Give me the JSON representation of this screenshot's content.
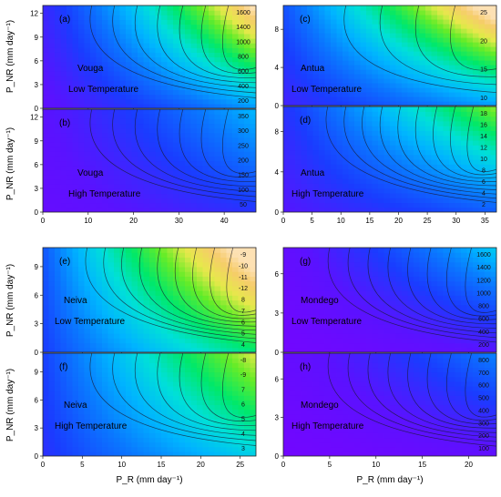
{
  "panels": [
    {
      "id": "a",
      "letter": "(a)",
      "river": "Vouga",
      "condition": "Low Temperature",
      "xlim": [
        0,
        47
      ],
      "ylim": [
        0,
        13
      ],
      "xticks": [
        "0",
        "10",
        "20",
        "30",
        "40"
      ],
      "yticks": [
        "0",
        "3",
        "6",
        "9",
        "12"
      ]
    },
    {
      "id": "b",
      "letter": "(b)",
      "river": "Vouga",
      "condition": "High Temperature",
      "xlim": [
        0,
        47
      ],
      "ylim": [
        0,
        13
      ],
      "xticks": [
        "0",
        "10",
        "20",
        "30",
        "40"
      ],
      "yticks": [
        "0",
        "3",
        "6",
        "9",
        "12"
      ]
    },
    {
      "id": "c",
      "letter": "(c)",
      "river": "Antua",
      "condition": "Low Temperature",
      "xlim": [
        0,
        37
      ],
      "ylim": [
        0,
        10.5
      ],
      "xticks": [
        "0",
        "5",
        "10",
        "15",
        "20",
        "25",
        "30",
        "35"
      ],
      "yticks": [
        "0",
        "4",
        "8"
      ]
    },
    {
      "id": "d",
      "letter": "(d)",
      "river": "Antua",
      "condition": "High Temperature",
      "xlim": [
        0,
        37
      ],
      "ylim": [
        0,
        10.5
      ],
      "xticks": [
        "0",
        "5",
        "10",
        "15",
        "20",
        "25",
        "30",
        "35"
      ],
      "yticks": [
        "0",
        "4",
        "8"
      ]
    },
    {
      "id": "e",
      "letter": "(e)",
      "river": "Neiva",
      "condition": "Low Temperature",
      "xlim": [
        0,
        27
      ],
      "ylim": [
        0,
        11
      ],
      "xticks": [
        "0",
        "5",
        "10",
        "15",
        "20",
        "25"
      ],
      "yticks": [
        "0",
        "3",
        "6",
        "9"
      ]
    },
    {
      "id": "f",
      "letter": "(f)",
      "river": "Neiva",
      "condition": "High Temperature",
      "xlim": [
        0,
        27
      ],
      "ylim": [
        0,
        11
      ],
      "xticks": [
        "0",
        "5",
        "10",
        "15",
        "20",
        "25"
      ],
      "yticks": [
        "0",
        "3",
        "6",
        "9"
      ]
    },
    {
      "id": "g",
      "letter": "(g)",
      "river": "Mondego",
      "condition": "Low Temperature",
      "xlim": [
        0,
        23
      ],
      "ylim": [
        0,
        8
      ],
      "xticks": [
        "0",
        "5",
        "10",
        "15",
        "20"
      ],
      "yticks": [
        "0",
        "3",
        "6"
      ]
    },
    {
      "id": "h",
      "letter": "(h)",
      "river": "Mondego",
      "condition": "High Temperature",
      "xlim": [
        0,
        23
      ],
      "ylim": [
        0,
        8
      ],
      "xticks": [
        "0",
        "5",
        "10",
        "15",
        "20"
      ],
      "yticks": [
        "0",
        "3",
        "6"
      ]
    }
  ],
  "axis_labels": {
    "y": "P_NR (mm day⁻¹)",
    "x": "P_R (mm day⁻¹)"
  },
  "chart_data": [
    {
      "type": "heatmap",
      "panel": "a",
      "river": "Vouga",
      "condition": "Low Temperature",
      "xlabel": "P_R (mm day⁻¹)",
      "ylabel": "P_NR (mm day⁻¹)",
      "xlim": [
        0,
        47
      ],
      "ylim": [
        0,
        13
      ],
      "contour_labels": [
        "1600",
        "1400",
        "1000",
        "800",
        "600",
        "400",
        "200"
      ]
    },
    {
      "type": "heatmap",
      "panel": "b",
      "river": "Vouga",
      "condition": "High Temperature",
      "xlabel": "P_R (mm day⁻¹)",
      "ylabel": "P_NR (mm day⁻¹)",
      "xlim": [
        0,
        47
      ],
      "ylim": [
        0,
        13
      ],
      "contour_labels": [
        "350",
        "300",
        "250",
        "200",
        "150",
        "100",
        "50"
      ]
    },
    {
      "type": "heatmap",
      "panel": "c",
      "river": "Antua",
      "condition": "Low Temperature",
      "xlim": [
        0,
        37
      ],
      "ylim": [
        0,
        10.5
      ],
      "contour_labels": [
        "25",
        "20",
        "15",
        "10"
      ]
    },
    {
      "type": "heatmap",
      "panel": "d",
      "river": "Antua",
      "condition": "High Temperature",
      "xlim": [
        0,
        37
      ],
      "ylim": [
        0,
        10.5
      ],
      "contour_labels": [
        "18",
        "16",
        "14",
        "12",
        "10",
        "8",
        "6",
        "4",
        "2"
      ]
    },
    {
      "type": "heatmap",
      "panel": "e",
      "river": "Neiva",
      "condition": "Low Temperature",
      "xlim": [
        0,
        27
      ],
      "ylim": [
        0,
        11
      ],
      "contour_labels": [
        "-9",
        "-10",
        "-11",
        "-12",
        "8",
        "7",
        "6",
        "5",
        "4"
      ]
    },
    {
      "type": "heatmap",
      "panel": "f",
      "river": "Neiva",
      "condition": "High Temperature",
      "xlim": [
        0,
        27
      ],
      "ylim": [
        0,
        11
      ],
      "contour_labels": [
        "-8",
        "-9",
        "7",
        "6",
        "5",
        "4",
        "3"
      ]
    },
    {
      "type": "heatmap",
      "panel": "g",
      "river": "Mondego",
      "condition": "Low Temperature",
      "xlim": [
        0,
        23
      ],
      "ylim": [
        0,
        8
      ],
      "contour_labels": [
        "1600",
        "1400",
        "1200",
        "1000",
        "800",
        "600",
        "400",
        "200"
      ]
    },
    {
      "type": "heatmap",
      "panel": "h",
      "river": "Mondego",
      "condition": "High Temperature",
      "xlim": [
        0,
        23
      ],
      "ylim": [
        0,
        8
      ],
      "contour_labels": [
        "800",
        "700",
        "600",
        "500",
        "400",
        "300",
        "200",
        "100"
      ]
    }
  ]
}
